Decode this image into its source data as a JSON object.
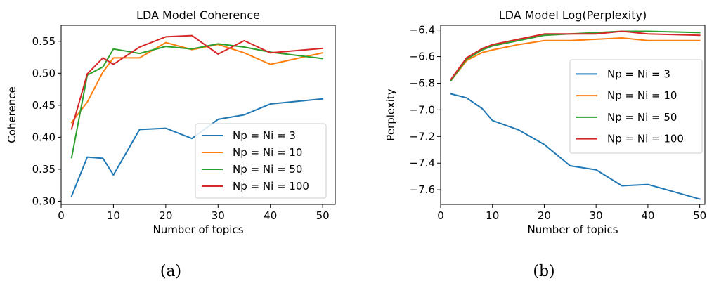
{
  "chart_data": [
    {
      "type": "line",
      "title": "LDA Model Coherence",
      "xlabel": "Number of topics",
      "ylabel": "Coherence",
      "xlim": [
        0,
        52.4
      ],
      "ylim": [
        0.295,
        0.575
      ],
      "xticks": [
        0,
        10,
        20,
        30,
        40,
        50
      ],
      "yticks": [
        0.3,
        0.35,
        0.4,
        0.45,
        0.5,
        0.55
      ],
      "ytick_labels": [
        "0.30",
        "0.35",
        "0.40",
        "0.45",
        "0.50",
        "0.55"
      ],
      "grid": false,
      "legend_position": "lower-right",
      "caption": "(a)",
      "x": [
        2,
        5,
        8,
        10,
        15,
        20,
        25,
        30,
        35,
        40,
        50
      ],
      "series": [
        {
          "name": "Np = Ni = 3",
          "color": "#1f77b4",
          "values": [
            0.308,
            0.369,
            0.367,
            0.341,
            0.412,
            0.414,
            0.398,
            0.428,
            0.435,
            0.452,
            0.46
          ]
        },
        {
          "name": "Np = Ni = 10",
          "color": "#ff7f0e",
          "values": [
            0.423,
            0.455,
            0.502,
            0.524,
            0.524,
            0.548,
            0.537,
            0.545,
            0.532,
            0.514,
            0.532
          ]
        },
        {
          "name": "Np = Ni = 50",
          "color": "#2ca02c",
          "values": [
            0.368,
            0.497,
            0.51,
            0.538,
            0.531,
            0.542,
            0.538,
            0.546,
            0.541,
            0.533,
            0.523
          ]
        },
        {
          "name": "Np = Ni = 100",
          "color": "#d62728",
          "values": [
            0.413,
            0.499,
            0.524,
            0.514,
            0.541,
            0.557,
            0.559,
            0.53,
            0.551,
            0.532,
            0.539
          ]
        }
      ]
    },
    {
      "type": "line",
      "title": "LDA Model Log(Perplexity)",
      "xlabel": "Number of topics",
      "ylabel": "Perplexity",
      "xlim": [
        0,
        51
      ],
      "ylim": [
        -7.71,
        -6.365
      ],
      "xticks": [
        0,
        10,
        20,
        30,
        40,
        50
      ],
      "yticks": [
        -7.6,
        -7.4,
        -7.2,
        -7.0,
        -6.8,
        -6.6,
        -6.4
      ],
      "ytick_labels": [
        "−7.6",
        "−7.4",
        "−7.2",
        "−7.0",
        "−6.8",
        "−6.6",
        "−6.4"
      ],
      "grid": false,
      "legend_position": "center-right",
      "caption": "(b)",
      "x": [
        2,
        5,
        8,
        10,
        15,
        20,
        25,
        30,
        35,
        40,
        50
      ],
      "series": [
        {
          "name": "Np = Ni = 3",
          "color": "#1f77b4",
          "values": [
            -6.88,
            -6.91,
            -6.99,
            -7.08,
            -7.15,
            -7.26,
            -7.42,
            -7.45,
            -7.57,
            -7.56,
            -7.67
          ]
        },
        {
          "name": "Np = Ni = 10",
          "color": "#ff7f0e",
          "values": [
            -6.78,
            -6.63,
            -6.57,
            -6.55,
            -6.51,
            -6.48,
            -6.48,
            -6.47,
            -6.46,
            -6.48,
            -6.48
          ]
        },
        {
          "name": "Np = Ni = 50",
          "color": "#2ca02c",
          "values": [
            -6.78,
            -6.62,
            -6.55,
            -6.52,
            -6.48,
            -6.44,
            -6.43,
            -6.42,
            -6.41,
            -6.41,
            -6.42
          ]
        },
        {
          "name": "Np = Ni = 100",
          "color": "#d62728",
          "values": [
            -6.77,
            -6.61,
            -6.54,
            -6.51,
            -6.47,
            -6.43,
            -6.43,
            -6.43,
            -6.41,
            -6.43,
            -6.44
          ]
        }
      ]
    }
  ]
}
